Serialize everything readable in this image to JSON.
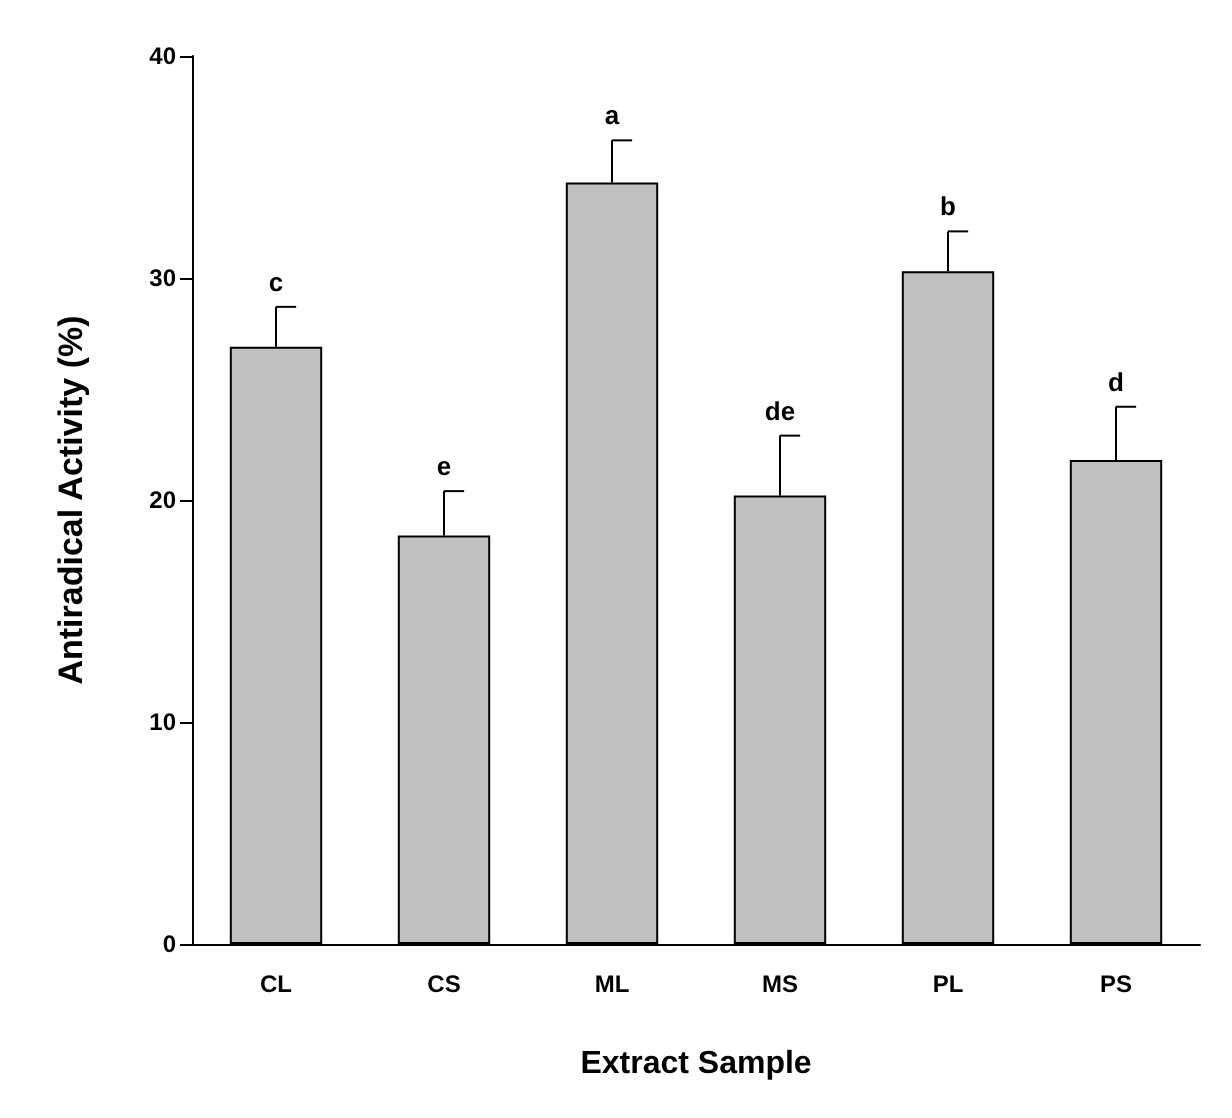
{
  "chart_data": {
    "type": "bar",
    "xlabel": "Extract Sample",
    "ylabel": "Antiradical Activity (%)",
    "categories": [
      "CL",
      "CS",
      "ML",
      "MS",
      "PL",
      "PS"
    ],
    "values": [
      26.9,
      18.4,
      34.3,
      20.2,
      30.3,
      21.8
    ],
    "errors": [
      [
        26.9,
        28.7
      ],
      [
        18.4,
        20.4
      ],
      [
        34.3,
        36.2
      ],
      [
        20.2,
        22.9
      ],
      [
        30.3,
        32.1
      ],
      [
        21.8,
        24.2
      ]
    ],
    "color": "#c0c0c0",
    "ylim": [
      0,
      40
    ],
    "yticks": [
      0,
      10,
      20,
      30,
      40
    ],
    "grid": false,
    "annotations": [
      {
        "text": "c",
        "x": "CL",
        "y": 28.7
      },
      {
        "text": "e",
        "x": "CS",
        "y": 20.4
      },
      {
        "text": "a",
        "x": "ML",
        "y": 36.2
      },
      {
        "text": "de",
        "x": "MS",
        "y": 22.9
      },
      {
        "text": "b",
        "x": "PL",
        "y": 32.1
      },
      {
        "text": "d",
        "x": "PS",
        "y": 24.2
      }
    ]
  }
}
